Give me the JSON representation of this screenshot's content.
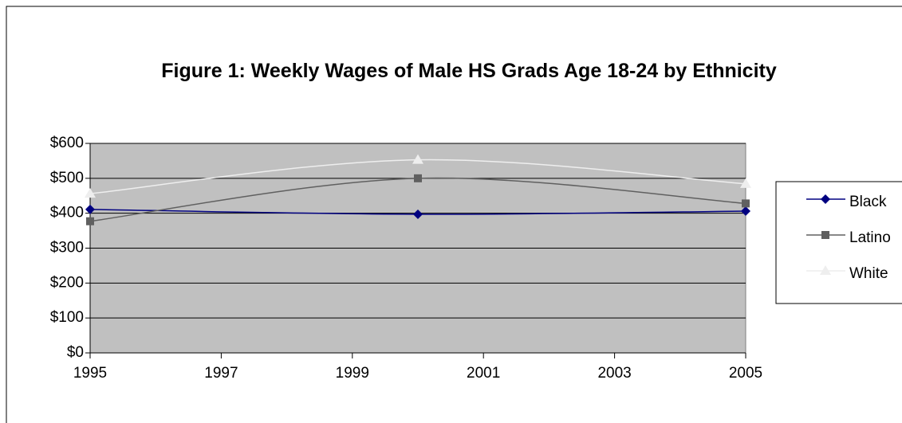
{
  "chart_data": {
    "type": "line",
    "title": "Figure 1: Weekly Wages of Male HS Grads Age 18-24 by Ethnicity",
    "x": [
      1995,
      2000,
      2005
    ],
    "series": [
      {
        "name": "Black",
        "color": "#000080",
        "marker": "diamond",
        "values": [
          411,
          397,
          406
        ]
      },
      {
        "name": "Latino",
        "color": "#606060",
        "marker": "square",
        "values": [
          377,
          500,
          428
        ]
      },
      {
        "name": "White",
        "color": "#eeeeee",
        "marker": "triangle",
        "values": [
          456,
          553,
          484
        ]
      }
    ],
    "xlim": [
      1995,
      2005
    ],
    "xticks": [
      1995,
      1997,
      1999,
      2001,
      2003,
      2005
    ],
    "ylim": [
      0,
      600
    ],
    "yticks": [
      {
        "value": 0,
        "label": "$0"
      },
      {
        "value": 100,
        "label": "$100"
      },
      {
        "value": 200,
        "label": "$200"
      },
      {
        "value": 300,
        "label": "$300"
      },
      {
        "value": 400,
        "label": "$400"
      },
      {
        "value": 500,
        "label": "$500"
      },
      {
        "value": 600,
        "label": "$600"
      }
    ],
    "grid": true,
    "legend": "right",
    "smooth": true,
    "plot_background": "#c0c0c0"
  }
}
